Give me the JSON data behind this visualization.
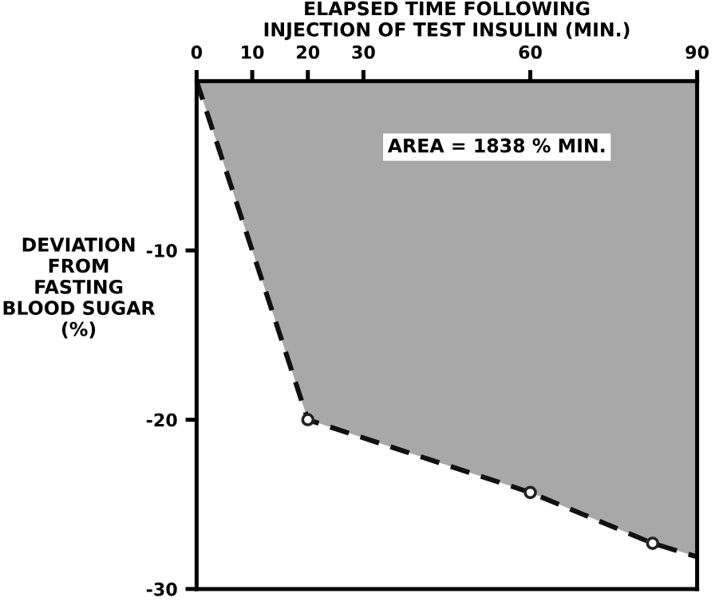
{
  "chart_data": {
    "type": "area",
    "title": "ELAPSED TIME FOLLOWING\nINJECTION OF TEST INSULIN (MIN.)",
    "ylabel": "DEVIATION\nFROM\nFASTING\nBLOOD SUGAR\n(%)",
    "annotations": [
      "AREA = 1838 % MIN."
    ],
    "xlim": [
      0,
      90
    ],
    "xticks": [
      0,
      10,
      20,
      30,
      60,
      90
    ],
    "ylim": [
      -30,
      0
    ],
    "yticks": [
      -10,
      -20,
      -30
    ],
    "grid": false,
    "series": [
      {
        "color": "#a8a8a8",
        "line_style": "dashed",
        "x": [
          0,
          20,
          60,
          82,
          90
        ],
        "values": [
          0,
          -20,
          -24.3,
          -27.3,
          -28.1
        ]
      },
      {
        "type": "scatter",
        "color": "#222222",
        "marker": "circle",
        "x": [
          20,
          60,
          82
        ],
        "values": [
          -20,
          -24.3,
          -27.3
        ]
      }
    ]
  }
}
